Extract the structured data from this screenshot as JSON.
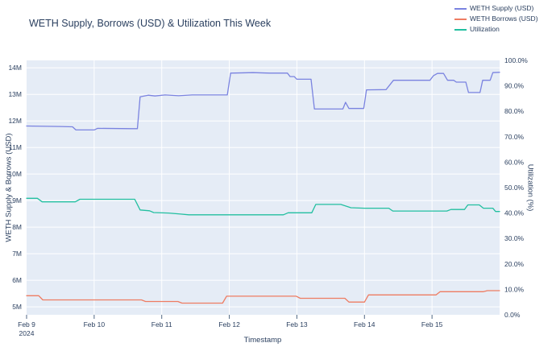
{
  "title": "WETH Supply, Borrows (USD) & Utilization This Week",
  "legend": [
    {
      "label": "WETH Supply (USD)",
      "color": "#7a83e0"
    },
    {
      "label": "WETH Borrows (USD)",
      "color": "#ee7c62"
    },
    {
      "label": "Utilization",
      "color": "#22bfa0"
    }
  ],
  "axes": {
    "x_title": "Timestamp",
    "y_left_title": "WETH Supply & Borrows (USD)",
    "y_right_title": "Utilization (%)",
    "x_ticks": [
      {
        "label": "Feb 9",
        "sublabel": "2024",
        "day": 0
      },
      {
        "label": "Feb 10",
        "day": 1
      },
      {
        "label": "Feb 11",
        "day": 2
      },
      {
        "label": "Feb 12",
        "day": 3
      },
      {
        "label": "Feb 13",
        "day": 4
      },
      {
        "label": "Feb 14",
        "day": 5
      },
      {
        "label": "Feb 15",
        "day": 6
      }
    ],
    "y_left_ticks": [
      {
        "label": "14M",
        "value": 14
      },
      {
        "label": "13M",
        "value": 13
      },
      {
        "label": "12M",
        "value": 12
      },
      {
        "label": "11M",
        "value": 11
      },
      {
        "label": "10M",
        "value": 10
      },
      {
        "label": "9M",
        "value": 9
      },
      {
        "label": "8M",
        "value": 8
      },
      {
        "label": "7M",
        "value": 7
      },
      {
        "label": "6M",
        "value": 6
      },
      {
        "label": "5M",
        "value": 5
      }
    ],
    "y_right_ticks": [
      {
        "label": "100.0%",
        "value": 100
      },
      {
        "label": "90.0%",
        "value": 90
      },
      {
        "label": "80.0%",
        "value": 80
      },
      {
        "label": "70.0%",
        "value": 70
      },
      {
        "label": "60.0%",
        "value": 60
      },
      {
        "label": "50.0%",
        "value": 50
      },
      {
        "label": "40.0%",
        "value": 40
      },
      {
        "label": "30.0%",
        "value": 30
      },
      {
        "label": "20.0%",
        "value": 20
      },
      {
        "label": "10.0%",
        "value": 10
      },
      {
        "label": "0.0%",
        "value": 0
      }
    ]
  },
  "colors": {
    "plot_bg": "#e5ecf6",
    "grid": "#ffffff",
    "text": "#2a3f5f",
    "tick_mark": "#506784"
  },
  "chart_data": {
    "type": "line",
    "title": "WETH Supply, Borrows (USD) & Utilization This Week",
    "xlabel": "Timestamp",
    "x_unit": "days after Feb 9 2024 00:00",
    "x_range_days": [
      0,
      7
    ],
    "grid": true,
    "legend_position": "top-right",
    "y_left": {
      "label": "WETH Supply & Borrows (USD)",
      "unit": "millions USD",
      "range": [
        4.7,
        14.28
      ],
      "tick_step": 1
    },
    "y_right": {
      "label": "Utilization (%)",
      "unit": "percent",
      "range": [
        0,
        100
      ],
      "tick_step": 10
    },
    "series": [
      {
        "name": "WETH Supply (USD)",
        "axis": "left",
        "color": "#7a83e0",
        "unit": "M USD",
        "points": [
          [
            0.0,
            11.81
          ],
          [
            0.5,
            11.79
          ],
          [
            0.68,
            11.78
          ],
          [
            0.73,
            11.66
          ],
          [
            1.0,
            11.66
          ],
          [
            1.05,
            11.72
          ],
          [
            1.55,
            11.71
          ],
          [
            1.64,
            11.71
          ],
          [
            1.68,
            12.91
          ],
          [
            1.8,
            12.97
          ],
          [
            1.9,
            12.94
          ],
          [
            2.05,
            12.98
          ],
          [
            2.25,
            12.95
          ],
          [
            2.45,
            12.98
          ],
          [
            2.97,
            12.98
          ],
          [
            3.02,
            13.8
          ],
          [
            3.35,
            13.82
          ],
          [
            3.6,
            13.8
          ],
          [
            3.86,
            13.8
          ],
          [
            3.9,
            13.67
          ],
          [
            3.96,
            13.67
          ],
          [
            4.0,
            13.57
          ],
          [
            4.21,
            13.57
          ],
          [
            4.26,
            12.45
          ],
          [
            4.68,
            12.45
          ],
          [
            4.72,
            12.7
          ],
          [
            4.77,
            12.47
          ],
          [
            4.99,
            12.47
          ],
          [
            5.03,
            13.17
          ],
          [
            5.32,
            13.18
          ],
          [
            5.43,
            13.53
          ],
          [
            5.97,
            13.53
          ],
          [
            6.02,
            13.7
          ],
          [
            6.08,
            13.79
          ],
          [
            6.17,
            13.79
          ],
          [
            6.23,
            13.53
          ],
          [
            6.32,
            13.53
          ],
          [
            6.36,
            13.46
          ],
          [
            6.5,
            13.46
          ],
          [
            6.54,
            13.07
          ],
          [
            6.71,
            13.07
          ],
          [
            6.75,
            13.53
          ],
          [
            6.86,
            13.53
          ],
          [
            6.9,
            13.82
          ],
          [
            7.0,
            13.83
          ]
        ]
      },
      {
        "name": "WETH Borrows (USD)",
        "axis": "left",
        "color": "#ee7c62",
        "unit": "M USD",
        "points": [
          [
            0.0,
            5.42
          ],
          [
            0.18,
            5.42
          ],
          [
            0.24,
            5.26
          ],
          [
            1.7,
            5.26
          ],
          [
            1.76,
            5.2
          ],
          [
            2.24,
            5.2
          ],
          [
            2.3,
            5.14
          ],
          [
            2.9,
            5.14
          ],
          [
            2.96,
            5.4
          ],
          [
            3.99,
            5.4
          ],
          [
            4.05,
            5.32
          ],
          [
            4.71,
            5.32
          ],
          [
            4.77,
            5.18
          ],
          [
            5.0,
            5.18
          ],
          [
            5.06,
            5.45
          ],
          [
            6.06,
            5.45
          ],
          [
            6.12,
            5.57
          ],
          [
            6.76,
            5.57
          ],
          [
            6.82,
            5.61
          ],
          [
            7.0,
            5.61
          ]
        ]
      },
      {
        "name": "Utilization",
        "axis": "right",
        "color": "#22bfa0",
        "unit": "%",
        "points": [
          [
            0.0,
            45.8
          ],
          [
            0.16,
            45.8
          ],
          [
            0.23,
            44.4
          ],
          [
            0.72,
            44.4
          ],
          [
            0.79,
            45.4
          ],
          [
            1.6,
            45.4
          ],
          [
            1.68,
            41.2
          ],
          [
            1.82,
            40.9
          ],
          [
            1.88,
            40.2
          ],
          [
            2.1,
            40.0
          ],
          [
            2.28,
            39.6
          ],
          [
            2.4,
            39.3
          ],
          [
            3.8,
            39.3
          ],
          [
            3.87,
            40.1
          ],
          [
            4.22,
            40.1
          ],
          [
            4.28,
            43.4
          ],
          [
            4.65,
            43.4
          ],
          [
            4.8,
            42.1
          ],
          [
            5.0,
            41.9
          ],
          [
            5.36,
            41.9
          ],
          [
            5.42,
            40.8
          ],
          [
            6.22,
            40.8
          ],
          [
            6.28,
            41.4
          ],
          [
            6.48,
            41.4
          ],
          [
            6.53,
            43.2
          ],
          [
            6.7,
            43.2
          ],
          [
            6.76,
            41.9
          ],
          [
            6.9,
            41.9
          ],
          [
            6.94,
            40.6
          ],
          [
            7.0,
            40.6
          ]
        ]
      }
    ]
  }
}
